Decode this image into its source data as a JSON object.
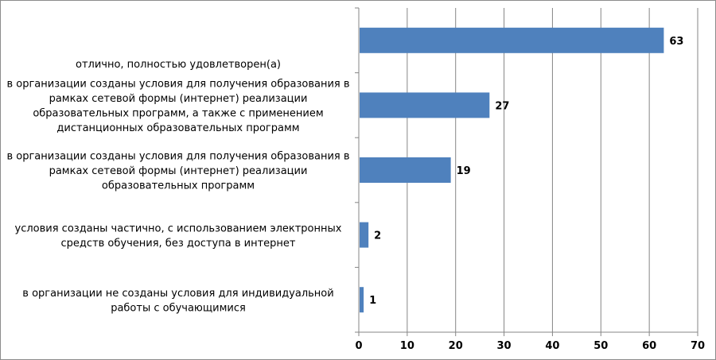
{
  "chart_data": {
    "type": "bar",
    "orientation": "horizontal",
    "categories": [
      [
        "отлично, полностью удовлетворен(а)"
      ],
      [
        "в организации созданы условия для получения образования в",
        "рамках сетевой формы (интернет) реализации",
        "образовательных программ, а также с применением",
        "дистанционных образовательных программ"
      ],
      [
        "в организации созданы условия для получения образования в",
        "рамках сетевой формы (интернет) реализации",
        "образовательных программ"
      ],
      [
        "условия созданы частично, с использованием электронных",
        "средств обучения, без доступа в интернет"
      ],
      [
        "в организации не созданы условия для индивидуальной",
        "работы с обучающимися"
      ]
    ],
    "values": [
      63,
      27,
      19,
      2,
      1
    ],
    "data_labels": [
      "63",
      "27",
      "19",
      "2",
      "1"
    ],
    "xlim": [
      0,
      70
    ],
    "x_ticks": [
      "0",
      "10",
      "20",
      "30",
      "40",
      "50",
      "60",
      "70"
    ],
    "grid": "vertical",
    "legend": "none",
    "bar_color": "#4f81bd",
    "grid_color": "#868686",
    "title": "",
    "xlabel": "",
    "ylabel": ""
  }
}
